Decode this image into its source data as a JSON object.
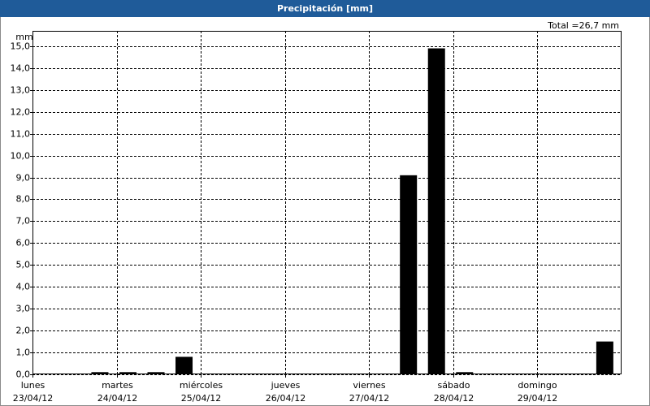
{
  "chart_data": {
    "type": "bar",
    "title": "Precipitación [mm]",
    "total": "Total =26,7 mm",
    "y_unit": "mm",
    "categories": [
      null,
      null,
      null,
      null,
      null,
      null,
      null,
      null,
      null,
      null,
      null,
      null,
      null,
      null,
      null,
      null,
      null,
      null,
      null,
      null,
      null
    ],
    "values": [
      0,
      0,
      0.1,
      0.1,
      0.1,
      0.8,
      0,
      0,
      0,
      0,
      0,
      0,
      0,
      9.1,
      14.9,
      0.1,
      0,
      0,
      0,
      0,
      1.5
    ],
    "day_labels": [
      {
        "day": "lunes",
        "date": "23/04/12"
      },
      {
        "day": "martes",
        "date": "24/04/12"
      },
      {
        "day": "miércoles",
        "date": "25/04/12"
      },
      {
        "day": "jueves",
        "date": "26/04/12"
      },
      {
        "day": "viernes",
        "date": "27/04/12"
      },
      {
        "day": "sábado",
        "date": "28/04/12"
      },
      {
        "day": "domingo",
        "date": "29/04/12"
      }
    ],
    "color": "#000000",
    "ylim": [
      0,
      15.7
    ],
    "yticks": [
      {
        "value": 0,
        "label": "0,0"
      },
      {
        "value": 1,
        "label": "1,0"
      },
      {
        "value": 2,
        "label": "2,0"
      },
      {
        "value": 3,
        "label": "3,0"
      },
      {
        "value": 4,
        "label": "4,0"
      },
      {
        "value": 5,
        "label": "5,0"
      },
      {
        "value": 6,
        "label": "6,0"
      },
      {
        "value": 7,
        "label": "7,0"
      },
      {
        "value": 8,
        "label": "8,0"
      },
      {
        "value": 9,
        "label": "9,0"
      },
      {
        "value": 10,
        "label": "10,0"
      },
      {
        "value": 11,
        "label": "11,0"
      },
      {
        "value": 12,
        "label": "12,0"
      },
      {
        "value": 13,
        "label": "13,0"
      },
      {
        "value": 14,
        "label": "14,0"
      },
      {
        "value": 15,
        "label": "15,0"
      }
    ],
    "grid": true
  }
}
